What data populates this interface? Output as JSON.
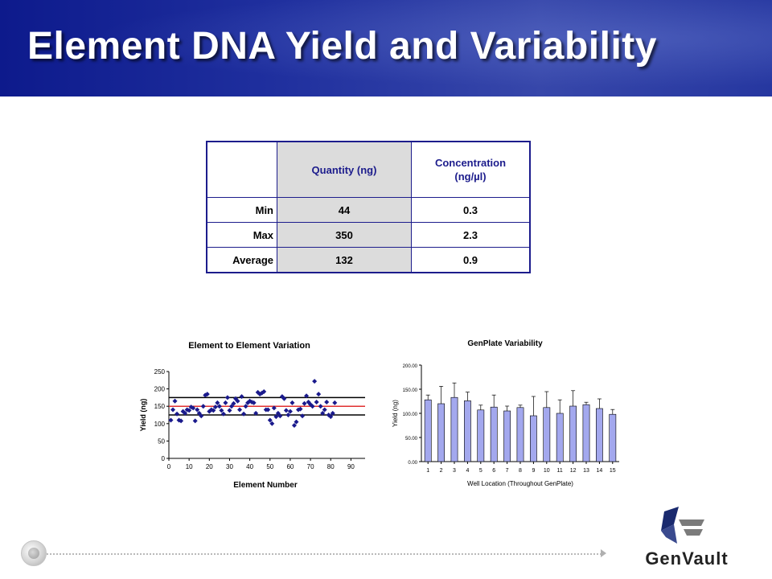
{
  "slide": {
    "title": "Element DNA Yield and Variability"
  },
  "table": {
    "columns": [
      "",
      "Quantity (ng)",
      "Concentration (ng/µl)"
    ],
    "concentration_line1": "Concentration",
    "concentration_line2": "(ng/µl)",
    "rows": [
      {
        "label": "Min",
        "quantity": "44",
        "concentration": "0.3"
      },
      {
        "label": "Max",
        "quantity": "350",
        "concentration": "2.3"
      },
      {
        "label": "Average",
        "quantity": "132",
        "concentration": "0.9"
      }
    ]
  },
  "chart_data": [
    {
      "type": "scatter",
      "title": "Element to Element Variation",
      "xlabel": "Element Number",
      "ylabel": "Yield (ng)",
      "xlim": [
        0,
        97
      ],
      "ylim": [
        0,
        250
      ],
      "xticks": [
        0,
        10,
        20,
        30,
        40,
        50,
        60,
        70,
        80,
        90
      ],
      "yticks": [
        0,
        50,
        100,
        150,
        200,
        250
      ],
      "marker_color": "#1a1a8c",
      "reference_lines": [
        {
          "y": 175,
          "color": "#000000"
        },
        {
          "y": 150,
          "color": "#e03030"
        },
        {
          "y": 125,
          "color": "#000000"
        }
      ],
      "points": [
        [
          1,
          110
        ],
        [
          2,
          140
        ],
        [
          3,
          165
        ],
        [
          4,
          128
        ],
        [
          5,
          110
        ],
        [
          6,
          108
        ],
        [
          7,
          135
        ],
        [
          8,
          130
        ],
        [
          9,
          140
        ],
        [
          10,
          138
        ],
        [
          11,
          148
        ],
        [
          12,
          145
        ],
        [
          13,
          108
        ],
        [
          14,
          140
        ],
        [
          15,
          130
        ],
        [
          16,
          122
        ],
        [
          17,
          150
        ],
        [
          18,
          182
        ],
        [
          19,
          185
        ],
        [
          20,
          135
        ],
        [
          21,
          140
        ],
        [
          22,
          138
        ],
        [
          23,
          148
        ],
        [
          24,
          160
        ],
        [
          25,
          150
        ],
        [
          26,
          138
        ],
        [
          27,
          128
        ],
        [
          28,
          160
        ],
        [
          29,
          175
        ],
        [
          30,
          138
        ],
        [
          31,
          150
        ],
        [
          32,
          158
        ],
        [
          33,
          172
        ],
        [
          34,
          165
        ],
        [
          35,
          140
        ],
        [
          36,
          178
        ],
        [
          37,
          128
        ],
        [
          38,
          150
        ],
        [
          39,
          160
        ],
        [
          40,
          165
        ],
        [
          41,
          162
        ],
        [
          42,
          160
        ],
        [
          43,
          130
        ],
        [
          44,
          190
        ],
        [
          45,
          185
        ],
        [
          46,
          188
        ],
        [
          47,
          192
        ],
        [
          48,
          140
        ],
        [
          49,
          140
        ],
        [
          50,
          110
        ],
        [
          51,
          100
        ],
        [
          52,
          145
        ],
        [
          53,
          120
        ],
        [
          54,
          130
        ],
        [
          55,
          122
        ],
        [
          56,
          178
        ],
        [
          57,
          172
        ],
        [
          58,
          138
        ],
        [
          59,
          125
        ],
        [
          60,
          135
        ],
        [
          61,
          160
        ],
        [
          62,
          95
        ],
        [
          63,
          105
        ],
        [
          64,
          140
        ],
        [
          65,
          142
        ],
        [
          66,
          122
        ],
        [
          67,
          158
        ],
        [
          68,
          180
        ],
        [
          69,
          162
        ],
        [
          70,
          155
        ],
        [
          71,
          150
        ],
        [
          72,
          222
        ],
        [
          73,
          162
        ],
        [
          74,
          185
        ],
        [
          75,
          150
        ],
        [
          76,
          130
        ],
        [
          77,
          140
        ],
        [
          78,
          162
        ],
        [
          79,
          125
        ],
        [
          80,
          120
        ],
        [
          81,
          130
        ],
        [
          82,
          160
        ]
      ]
    },
    {
      "type": "bar",
      "title": "GenPlate Variability",
      "xlabel": "Well Location (Throughout GenPlate)",
      "ylabel": "Yield (ng)",
      "ylim": [
        0,
        200
      ],
      "yticks": [
        "0.00",
        "50.00",
        "100.00",
        "150.00",
        "200.00"
      ],
      "bar_color": "#a3a8ee",
      "categories": [
        "1",
        "2",
        "3",
        "4",
        "5",
        "6",
        "7",
        "8",
        "9",
        "10",
        "11",
        "12",
        "13",
        "14",
        "15"
      ],
      "values": [
        128,
        120,
        133,
        126,
        107,
        113,
        105,
        112,
        95,
        112,
        100,
        115,
        118,
        110,
        98
      ],
      "error": [
        10,
        36,
        30,
        18,
        10,
        25,
        10,
        5,
        40,
        33,
        28,
        32,
        5,
        20,
        10
      ]
    }
  ],
  "logo": {
    "text": "GenVault"
  }
}
